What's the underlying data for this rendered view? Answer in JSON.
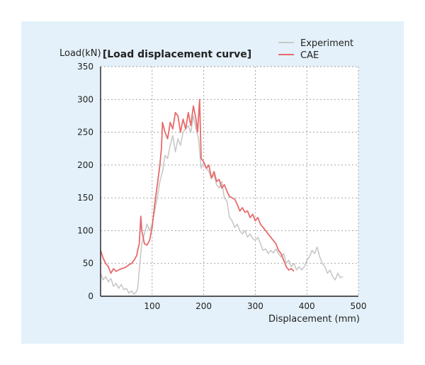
{
  "colors": {
    "panel_bg": "#e4f1fa",
    "experiment": "#c8c8c8",
    "cae": "#e86a6a",
    "axis": "#222222",
    "grid": "#9a9a9a"
  },
  "chart_data": {
    "type": "line",
    "title": "[Load displacement curve]",
    "xlabel": "Displacement (mm)",
    "ylabel": "Load(kN)",
    "xlim": [
      0,
      500
    ],
    "ylim": [
      0,
      350
    ],
    "x_ticks": [
      100,
      200,
      300,
      400,
      500
    ],
    "y_ticks": [
      0,
      50,
      100,
      150,
      200,
      250,
      300,
      350
    ],
    "grid": true,
    "grid_style": "dotted",
    "legend_position": "top-right",
    "series": [
      {
        "name": "Experiment",
        "color": "#c8c8c8",
        "points": [
          [
            0,
            35
          ],
          [
            5,
            25
          ],
          [
            10,
            30
          ],
          [
            15,
            22
          ],
          [
            20,
            27
          ],
          [
            25,
            15
          ],
          [
            30,
            20
          ],
          [
            35,
            12
          ],
          [
            40,
            18
          ],
          [
            45,
            10
          ],
          [
            50,
            12
          ],
          [
            55,
            5
          ],
          [
            60,
            8
          ],
          [
            65,
            3
          ],
          [
            70,
            8
          ],
          [
            72,
            12
          ],
          [
            75,
            40
          ],
          [
            78,
            65
          ],
          [
            80,
            80
          ],
          [
            85,
            95
          ],
          [
            90,
            110
          ],
          [
            95,
            100
          ],
          [
            100,
            110
          ],
          [
            105,
            130
          ],
          [
            110,
            150
          ],
          [
            115,
            175
          ],
          [
            120,
            190
          ],
          [
            125,
            215
          ],
          [
            130,
            210
          ],
          [
            135,
            230
          ],
          [
            140,
            245
          ],
          [
            145,
            220
          ],
          [
            150,
            240
          ],
          [
            155,
            230
          ],
          [
            160,
            250
          ],
          [
            165,
            255
          ],
          [
            170,
            260
          ],
          [
            175,
            250
          ],
          [
            180,
            275
          ],
          [
            185,
            255
          ],
          [
            190,
            240
          ],
          [
            195,
            195
          ],
          [
            200,
            205
          ],
          [
            205,
            195
          ],
          [
            210,
            190
          ],
          [
            215,
            180
          ],
          [
            220,
            185
          ],
          [
            225,
            170
          ],
          [
            230,
            165
          ],
          [
            235,
            175
          ],
          [
            240,
            150
          ],
          [
            245,
            145
          ],
          [
            250,
            120
          ],
          [
            255,
            115
          ],
          [
            260,
            105
          ],
          [
            265,
            110
          ],
          [
            270,
            100
          ],
          [
            275,
            95
          ],
          [
            280,
            100
          ],
          [
            285,
            90
          ],
          [
            290,
            95
          ],
          [
            295,
            88
          ],
          [
            300,
            85
          ],
          [
            305,
            90
          ],
          [
            310,
            80
          ],
          [
            315,
            70
          ],
          [
            320,
            72
          ],
          [
            325,
            65
          ],
          [
            330,
            70
          ],
          [
            335,
            66
          ],
          [
            340,
            72
          ],
          [
            345,
            65
          ],
          [
            350,
            60
          ],
          [
            355,
            65
          ],
          [
            360,
            50
          ],
          [
            365,
            55
          ],
          [
            370,
            45
          ],
          [
            375,
            50
          ],
          [
            380,
            40
          ],
          [
            385,
            45
          ],
          [
            390,
            40
          ],
          [
            395,
            45
          ],
          [
            400,
            55
          ],
          [
            405,
            60
          ],
          [
            410,
            70
          ],
          [
            415,
            65
          ],
          [
            420,
            75
          ],
          [
            425,
            60
          ],
          [
            430,
            50
          ],
          [
            435,
            45
          ],
          [
            440,
            35
          ],
          [
            445,
            40
          ],
          [
            450,
            30
          ],
          [
            455,
            25
          ],
          [
            460,
            35
          ],
          [
            465,
            28
          ],
          [
            470,
            30
          ]
        ]
      },
      {
        "name": "CAE",
        "color": "#e86a6a",
        "points": [
          [
            0,
            70
          ],
          [
            5,
            58
          ],
          [
            10,
            50
          ],
          [
            15,
            45
          ],
          [
            20,
            35
          ],
          [
            25,
            42
          ],
          [
            30,
            38
          ],
          [
            35,
            40
          ],
          [
            40,
            42
          ],
          [
            45,
            43
          ],
          [
            50,
            45
          ],
          [
            55,
            48
          ],
          [
            60,
            50
          ],
          [
            65,
            55
          ],
          [
            70,
            62
          ],
          [
            72,
            70
          ],
          [
            75,
            80
          ],
          [
            78,
            122
          ],
          [
            80,
            100
          ],
          [
            85,
            80
          ],
          [
            90,
            78
          ],
          [
            95,
            85
          ],
          [
            100,
            105
          ],
          [
            105,
            140
          ],
          [
            110,
            170
          ],
          [
            115,
            200
          ],
          [
            118,
            225
          ],
          [
            120,
            265
          ],
          [
            125,
            250
          ],
          [
            130,
            240
          ],
          [
            135,
            265
          ],
          [
            140,
            255
          ],
          [
            145,
            280
          ],
          [
            150,
            275
          ],
          [
            155,
            250
          ],
          [
            160,
            270
          ],
          [
            165,
            255
          ],
          [
            170,
            280
          ],
          [
            175,
            260
          ],
          [
            180,
            290
          ],
          [
            185,
            270
          ],
          [
            188,
            250
          ],
          [
            192,
            300
          ],
          [
            195,
            210
          ],
          [
            200,
            205
          ],
          [
            205,
            195
          ],
          [
            210,
            200
          ],
          [
            215,
            180
          ],
          [
            220,
            190
          ],
          [
            225,
            175
          ],
          [
            230,
            178
          ],
          [
            235,
            165
          ],
          [
            240,
            170
          ],
          [
            245,
            160
          ],
          [
            250,
            152
          ],
          [
            255,
            150
          ],
          [
            260,
            148
          ],
          [
            265,
            140
          ],
          [
            270,
            130
          ],
          [
            275,
            135
          ],
          [
            280,
            128
          ],
          [
            285,
            130
          ],
          [
            290,
            120
          ],
          [
            295,
            125
          ],
          [
            300,
            115
          ],
          [
            305,
            120
          ],
          [
            310,
            110
          ],
          [
            315,
            105
          ],
          [
            320,
            100
          ],
          [
            325,
            95
          ],
          [
            330,
            90
          ],
          [
            335,
            85
          ],
          [
            340,
            80
          ],
          [
            345,
            70
          ],
          [
            350,
            65
          ],
          [
            355,
            55
          ],
          [
            360,
            45
          ],
          [
            365,
            40
          ],
          [
            370,
            42
          ],
          [
            375,
            38
          ]
        ]
      }
    ]
  }
}
